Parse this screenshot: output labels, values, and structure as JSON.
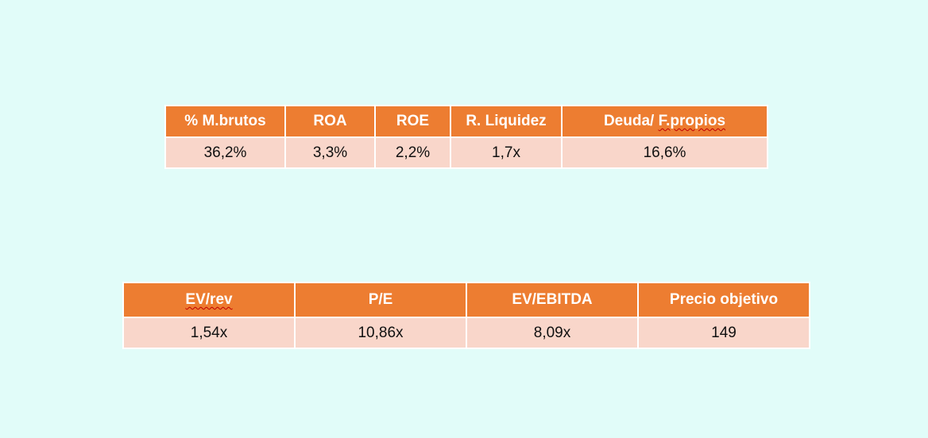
{
  "ratios_table": {
    "headers": [
      "% M.brutos",
      "ROA",
      "ROE",
      "R. Liquidez",
      "Deuda/ F.propios"
    ],
    "values": [
      "36,2%",
      "3,3%",
      "2,2%",
      "1,7x",
      "16,6%"
    ]
  },
  "valuation_table": {
    "headers": [
      "EV/rev",
      "P/E",
      "EV/EBITDA",
      "Precio objetivo"
    ],
    "values": [
      "1,54x",
      "10,86x",
      "8,09x",
      "149"
    ]
  },
  "colors": {
    "background": "#E1FCF9",
    "header_fill": "#ED7D31",
    "cell_fill": "#F9D6CA",
    "spellcheck_underline": "#C00000"
  }
}
